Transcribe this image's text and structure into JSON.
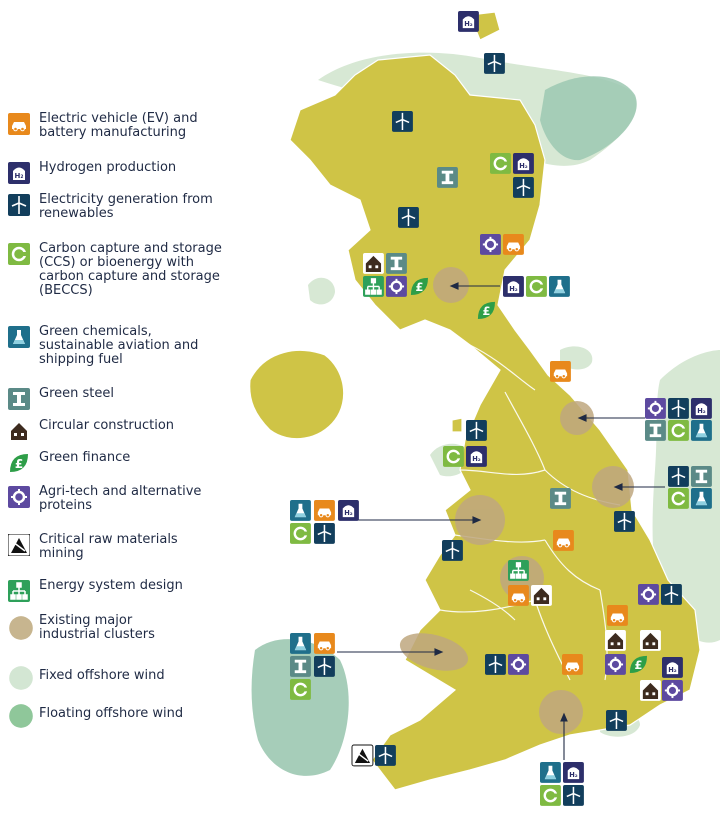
{
  "legend": {
    "items": [
      {
        "key": "ev",
        "label": "Electric vehicle (EV) and\nbattery manufacturing",
        "color": "#e8891c"
      },
      {
        "key": "h2",
        "label": "Hydrogen production",
        "color": "#2d2f6b"
      },
      {
        "key": "wind",
        "label": "Electricity generation from\nrenewables",
        "color": "#123e5c"
      },
      {
        "key": "ccs",
        "label": "Carbon capture and storage\n(CCS) or bioenergy with\ncarbon capture and storage\n(BECCS)",
        "color": "#7fba42"
      },
      {
        "key": "chem",
        "label": "Green chemicals,\nsustainable aviation and\nshipping fuel",
        "color": "#1f6f8b"
      },
      {
        "key": "steel",
        "label": "Green steel",
        "color": "#5b8a87"
      },
      {
        "key": "house",
        "label": "Circular construction",
        "color": "#3d2b1f"
      },
      {
        "key": "finance",
        "label": "Green finance",
        "color": "#2e9e48"
      },
      {
        "key": "agri",
        "label": "Agri-tech and alternative\nproteins",
        "color": "#5d4aa0"
      },
      {
        "key": "mining",
        "label": "Critical raw materials\nmining",
        "color": "#111111"
      },
      {
        "key": "energy",
        "label": "Energy system design",
        "color": "#2ea05a"
      },
      {
        "key": "cluster",
        "label": "Existing major\nindustrial clusters",
        "color": "#c7b58f"
      },
      {
        "key": "fixed",
        "label": "Fixed offshore wind",
        "color": "#d3e6d3"
      },
      {
        "key": "floating",
        "label": "Floating offshore wind",
        "color": "#8fc79a"
      }
    ]
  },
  "icon_text": {
    "h2": "H₂",
    "finance": "£"
  },
  "colors": {
    "land": "#cfc446",
    "land_stroke": "#ffffff",
    "cluster": "#bfa77f",
    "fixed_wind": "#d7e8d4",
    "floating_wind": "#9cc8b1",
    "pointer": "#1f2a44"
  }
}
